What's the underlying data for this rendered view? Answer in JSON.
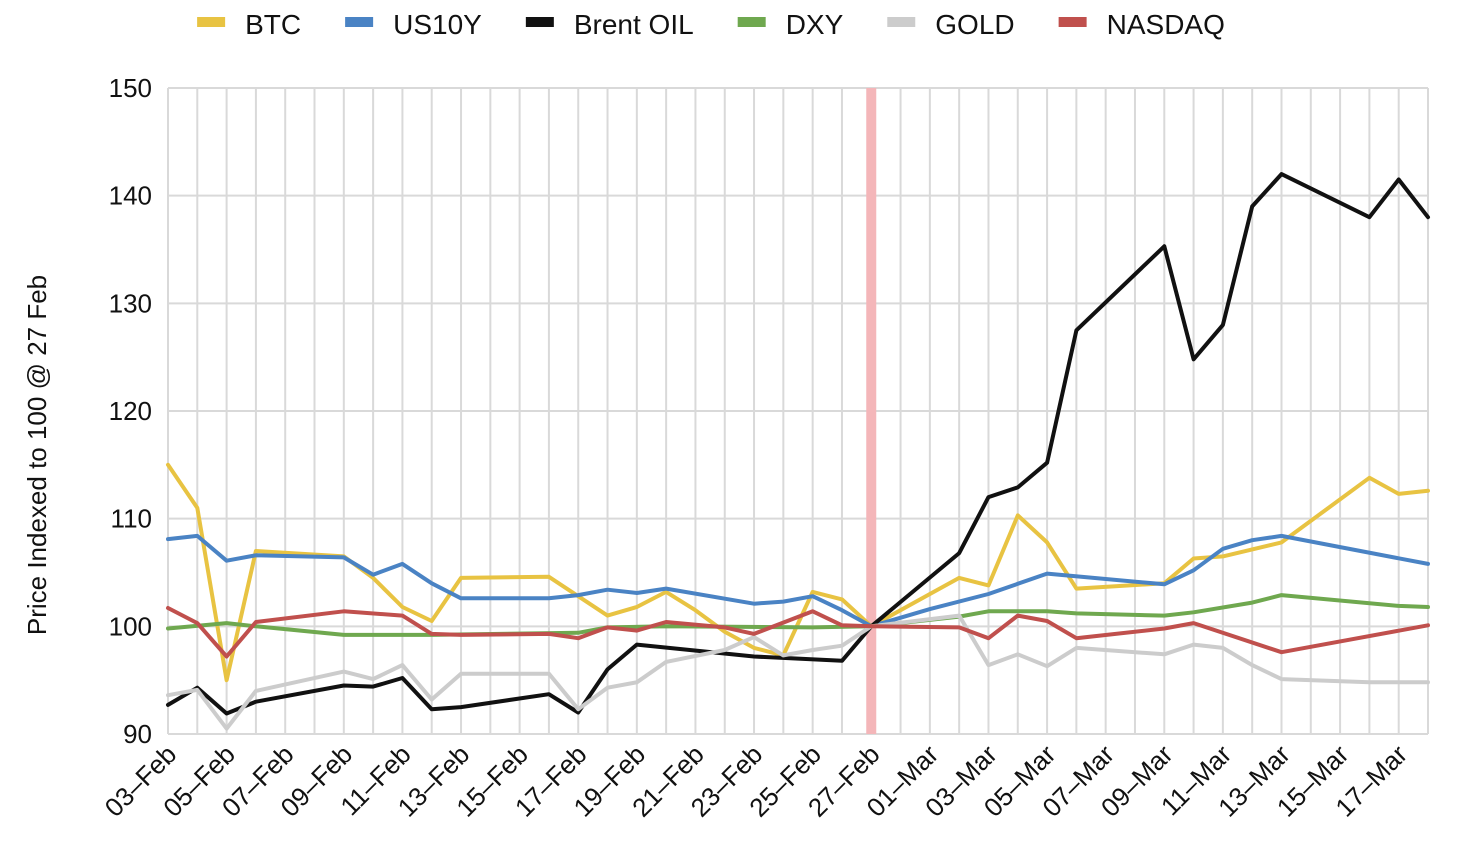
{
  "chart_data": {
    "type": "line",
    "ylabel": "Price Indexed to 100 @ 27 Feb",
    "ylim": [
      90,
      150
    ],
    "yticks": [
      90,
      100,
      110,
      120,
      130,
      140,
      150
    ],
    "grid": true,
    "legend_position": "top",
    "x_labels": [
      "03–Feb",
      "05–Feb",
      "07–Feb",
      "09–Feb",
      "11–Feb",
      "13–Feb",
      "15–Feb",
      "17–Feb",
      "19–Feb",
      "21–Feb",
      "23–Feb",
      "25–Feb",
      "27–Feb",
      "01–Mar",
      "03–Mar",
      "05–Mar",
      "07–Mar",
      "09–Mar",
      "11–Mar",
      "13–Mar",
      "15–Mar",
      "17–Mar"
    ],
    "x_start": "2022-02-03",
    "x_end": "2022-03-18",
    "reference_line": {
      "date": "2022-02-27",
      "color": "#f4b6b9"
    },
    "series": [
      {
        "name": "BTC",
        "color": "#e8c342",
        "points": [
          [
            "2022-02-03",
            115.0
          ],
          [
            "2022-02-04",
            111.0
          ],
          [
            "2022-02-05",
            95.0
          ],
          [
            "2022-02-06",
            107.0
          ],
          [
            "2022-02-09",
            106.5
          ],
          [
            "2022-02-10",
            104.5
          ],
          [
            "2022-02-11",
            101.8
          ],
          [
            "2022-02-12",
            100.5
          ],
          [
            "2022-02-13",
            104.5
          ],
          [
            "2022-02-16",
            104.6
          ],
          [
            "2022-02-17",
            102.8
          ],
          [
            "2022-02-18",
            101.0
          ],
          [
            "2022-02-19",
            101.8
          ],
          [
            "2022-02-20",
            103.2
          ],
          [
            "2022-02-21",
            101.5
          ],
          [
            "2022-02-22",
            99.5
          ],
          [
            "2022-02-23",
            98.0
          ],
          [
            "2022-02-24",
            97.3
          ],
          [
            "2022-02-25",
            103.2
          ],
          [
            "2022-02-26",
            102.5
          ],
          [
            "2022-02-27",
            100.0
          ],
          [
            "2022-03-01",
            103.0
          ],
          [
            "2022-03-02",
            104.5
          ],
          [
            "2022-03-03",
            103.8
          ],
          [
            "2022-03-04",
            110.3
          ],
          [
            "2022-03-05",
            107.8
          ],
          [
            "2022-03-06",
            103.5
          ],
          [
            "2022-03-09",
            104.0
          ],
          [
            "2022-03-10",
            106.3
          ],
          [
            "2022-03-11",
            106.5
          ],
          [
            "2022-03-13",
            107.8
          ],
          [
            "2022-03-16",
            113.8
          ],
          [
            "2022-03-17",
            112.3
          ],
          [
            "2022-03-18",
            112.6
          ]
        ]
      },
      {
        "name": "US10Y",
        "color": "#4a83c4",
        "points": [
          [
            "2022-02-03",
            108.1
          ],
          [
            "2022-02-04",
            108.4
          ],
          [
            "2022-02-05",
            106.1
          ],
          [
            "2022-02-06",
            106.6
          ],
          [
            "2022-02-09",
            106.4
          ],
          [
            "2022-02-10",
            104.8
          ],
          [
            "2022-02-11",
            105.8
          ],
          [
            "2022-02-12",
            104.0
          ],
          [
            "2022-02-13",
            102.6
          ],
          [
            "2022-02-16",
            102.6
          ],
          [
            "2022-02-17",
            102.9
          ],
          [
            "2022-02-18",
            103.4
          ],
          [
            "2022-02-19",
            103.1
          ],
          [
            "2022-02-20",
            103.5
          ],
          [
            "2022-02-23",
            102.1
          ],
          [
            "2022-02-24",
            102.3
          ],
          [
            "2022-02-25",
            102.8
          ],
          [
            "2022-02-26",
            101.5
          ],
          [
            "2022-02-27",
            100.0
          ],
          [
            "2022-03-01",
            101.6
          ],
          [
            "2022-03-03",
            103.0
          ],
          [
            "2022-03-05",
            104.9
          ],
          [
            "2022-03-09",
            103.9
          ],
          [
            "2022-03-10",
            105.2
          ],
          [
            "2022-03-11",
            107.2
          ],
          [
            "2022-03-12",
            108.0
          ],
          [
            "2022-03-13",
            108.4
          ],
          [
            "2022-03-18",
            105.8
          ]
        ]
      },
      {
        "name": "Brent OIL",
        "color": "#111111",
        "points": [
          [
            "2022-02-03",
            92.7
          ],
          [
            "2022-02-04",
            94.3
          ],
          [
            "2022-02-05",
            91.9
          ],
          [
            "2022-02-06",
            93.0
          ],
          [
            "2022-02-09",
            94.5
          ],
          [
            "2022-02-10",
            94.4
          ],
          [
            "2022-02-11",
            95.2
          ],
          [
            "2022-02-12",
            92.3
          ],
          [
            "2022-02-13",
            92.5
          ],
          [
            "2022-02-16",
            93.7
          ],
          [
            "2022-02-17",
            92.0
          ],
          [
            "2022-02-18",
            96.0
          ],
          [
            "2022-02-19",
            98.3
          ],
          [
            "2022-02-23",
            97.2
          ],
          [
            "2022-02-26",
            96.8
          ],
          [
            "2022-02-27",
            100.0
          ],
          [
            "2022-03-02",
            106.8
          ],
          [
            "2022-03-03",
            112.0
          ],
          [
            "2022-03-04",
            112.9
          ],
          [
            "2022-03-05",
            115.2
          ],
          [
            "2022-03-06",
            127.5
          ],
          [
            "2022-03-09",
            135.3
          ],
          [
            "2022-03-10",
            124.8
          ],
          [
            "2022-03-11",
            128.0
          ],
          [
            "2022-03-12",
            139.0
          ],
          [
            "2022-03-13",
            142.0
          ],
          [
            "2022-03-16",
            138.0
          ],
          [
            "2022-03-17",
            141.5
          ],
          [
            "2022-03-18",
            138.0
          ]
        ]
      },
      {
        "name": "DXY",
        "color": "#6fa84f",
        "points": [
          [
            "2022-02-03",
            99.8
          ],
          [
            "2022-02-05",
            100.3
          ],
          [
            "2022-02-06",
            100.0
          ],
          [
            "2022-02-09",
            99.2
          ],
          [
            "2022-02-12",
            99.2
          ],
          [
            "2022-02-17",
            99.4
          ],
          [
            "2022-02-18",
            99.9
          ],
          [
            "2022-02-20",
            100.0
          ],
          [
            "2022-02-25",
            99.9
          ],
          [
            "2022-02-27",
            100.0
          ],
          [
            "2022-03-02",
            100.9
          ],
          [
            "2022-03-03",
            101.4
          ],
          [
            "2022-03-05",
            101.4
          ],
          [
            "2022-03-06",
            101.2
          ],
          [
            "2022-03-09",
            101.0
          ],
          [
            "2022-03-10",
            101.3
          ],
          [
            "2022-03-12",
            102.2
          ],
          [
            "2022-03-13",
            102.9
          ],
          [
            "2022-03-17",
            101.9
          ],
          [
            "2022-03-18",
            101.8
          ]
        ]
      },
      {
        "name": "GOLD",
        "color": "#cccccc",
        "points": [
          [
            "2022-02-03",
            93.6
          ],
          [
            "2022-02-04",
            94.1
          ],
          [
            "2022-02-05",
            90.5
          ],
          [
            "2022-02-06",
            94.0
          ],
          [
            "2022-02-09",
            95.8
          ],
          [
            "2022-02-10",
            95.1
          ],
          [
            "2022-02-11",
            96.4
          ],
          [
            "2022-02-12",
            93.2
          ],
          [
            "2022-02-13",
            95.6
          ],
          [
            "2022-02-16",
            95.6
          ],
          [
            "2022-02-17",
            92.3
          ],
          [
            "2022-02-18",
            94.3
          ],
          [
            "2022-02-19",
            94.8
          ],
          [
            "2022-02-20",
            96.7
          ],
          [
            "2022-02-22",
            97.8
          ],
          [
            "2022-02-23",
            99.0
          ],
          [
            "2022-02-24",
            97.3
          ],
          [
            "2022-02-25",
            97.8
          ],
          [
            "2022-02-26",
            98.2
          ],
          [
            "2022-02-27",
            100.0
          ],
          [
            "2022-03-02",
            101.0
          ],
          [
            "2022-03-03",
            96.4
          ],
          [
            "2022-03-04",
            97.4
          ],
          [
            "2022-03-05",
            96.3
          ],
          [
            "2022-03-06",
            98.0
          ],
          [
            "2022-03-09",
            97.4
          ],
          [
            "2022-03-10",
            98.3
          ],
          [
            "2022-03-11",
            98.0
          ],
          [
            "2022-03-12",
            96.4
          ],
          [
            "2022-03-13",
            95.1
          ],
          [
            "2022-03-16",
            94.8
          ],
          [
            "2022-03-18",
            94.8
          ]
        ]
      },
      {
        "name": "NASDAQ",
        "color": "#c0504d",
        "points": [
          [
            "2022-02-03",
            101.7
          ],
          [
            "2022-02-04",
            100.3
          ],
          [
            "2022-02-05",
            97.2
          ],
          [
            "2022-02-06",
            100.4
          ],
          [
            "2022-02-09",
            101.4
          ],
          [
            "2022-02-11",
            101.0
          ],
          [
            "2022-02-12",
            99.3
          ],
          [
            "2022-02-13",
            99.2
          ],
          [
            "2022-02-16",
            99.3
          ],
          [
            "2022-02-17",
            98.9
          ],
          [
            "2022-02-18",
            99.9
          ],
          [
            "2022-02-19",
            99.6
          ],
          [
            "2022-02-20",
            100.4
          ],
          [
            "2022-02-22",
            99.9
          ],
          [
            "2022-02-23",
            99.3
          ],
          [
            "2022-02-25",
            101.4
          ],
          [
            "2022-02-26",
            100.1
          ],
          [
            "2022-02-27",
            100.0
          ],
          [
            "2022-03-02",
            99.9
          ],
          [
            "2022-03-03",
            98.9
          ],
          [
            "2022-03-04",
            101.0
          ],
          [
            "2022-03-05",
            100.5
          ],
          [
            "2022-03-06",
            98.9
          ],
          [
            "2022-03-09",
            99.8
          ],
          [
            "2022-03-10",
            100.3
          ],
          [
            "2022-03-13",
            97.6
          ],
          [
            "2022-03-18",
            100.1
          ]
        ]
      }
    ]
  }
}
